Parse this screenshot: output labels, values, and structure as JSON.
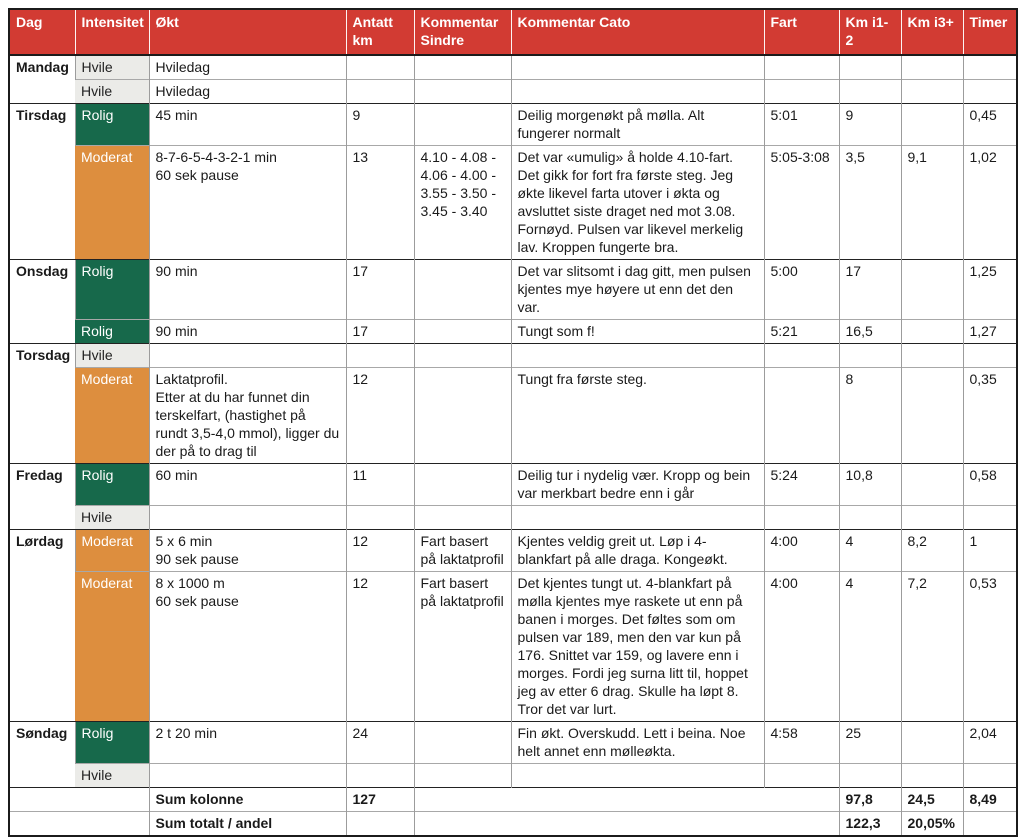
{
  "colors": {
    "header_bg": "#d23b33",
    "header_text": "#ffffff",
    "intensity_rolig": "#17694b",
    "intensity_moderat": "#dd8e3e",
    "intensity_hvile": "#ebebe8"
  },
  "header": {
    "columns": [
      "Dag",
      "Intensitet",
      "Økt",
      "Antatt km",
      "Kommentar Sindre",
      "Kommentar Cato",
      "Fart",
      "Km i1-2",
      "Km i3+",
      "Timer"
    ]
  },
  "rows": [
    {
      "day": "Mandag",
      "day_span": 2,
      "level": "hvile",
      "intensitet": "Hvile",
      "okt": "Hviledag",
      "antatt_km": "",
      "kommentar_sindre": "",
      "kommentar_cato": "",
      "fart": "",
      "km_i12": "",
      "km_i3": "",
      "timer": ""
    },
    {
      "level": "hvile",
      "intensitet": "Hvile",
      "okt": "Hviledag",
      "antatt_km": "",
      "kommentar_sindre": "",
      "kommentar_cato": "",
      "fart": "",
      "km_i12": "",
      "km_i3": "",
      "timer": ""
    },
    {
      "day": "Tirsdag",
      "day_span": 2,
      "level": "rolig",
      "intensitet": "Rolig",
      "okt": "45 min",
      "antatt_km": "9",
      "kommentar_sindre": "",
      "kommentar_cato": "Deilig morgenøkt på mølla. Alt fungerer normalt",
      "fart": "5:01",
      "km_i12": "9",
      "km_i3": "",
      "timer": "0,45"
    },
    {
      "level": "moderat",
      "intensitet": "Moderat",
      "okt": "8-7-6-5-4-3-2-1 min\n60 sek pause",
      "antatt_km": "13",
      "kommentar_sindre": "4.10 - 4.08 - 4.06 - 4.00 - 3.55 - 3.50 - 3.45 - 3.40",
      "kommentar_cato": "Det var «umulig» å holde 4.10-fart. Det gikk for fort fra første steg. Jeg økte likevel farta utover i økta og avsluttet siste draget ned mot 3.08. Fornøyd. Pulsen var likevel merkelig lav. Kroppen fungerte bra.",
      "fart": "5:05-3:08",
      "km_i12": "3,5",
      "km_i3": "9,1",
      "timer": "1,02"
    },
    {
      "day": "Onsdag",
      "day_span": 2,
      "level": "rolig",
      "intensitet": "Rolig",
      "okt": "90 min",
      "antatt_km": "17",
      "kommentar_sindre": "",
      "kommentar_cato": "Det var slitsomt i dag gitt, men pulsen kjentes mye høyere ut enn det den var.",
      "fart": "5:00",
      "km_i12": "17",
      "km_i3": "",
      "timer": "1,25"
    },
    {
      "level": "rolig",
      "intensitet": "Rolig",
      "okt": "90 min",
      "antatt_km": "17",
      "kommentar_sindre": "",
      "kommentar_cato": "Tungt som f!",
      "fart": "5:21",
      "km_i12": "16,5",
      "km_i3": "",
      "timer": "1,27"
    },
    {
      "day": "Torsdag",
      "day_span": 2,
      "level": "hvile",
      "intensitet": "Hvile",
      "okt": "",
      "antatt_km": "",
      "kommentar_sindre": "",
      "kommentar_cato": "",
      "fart": "",
      "km_i12": "",
      "km_i3": "",
      "timer": ""
    },
    {
      "level": "moderat",
      "intensitet": "Moderat",
      "okt": "Laktatprofil.\nEtter at du har funnet din terskelfart, (hastighet på rundt 3,5-4,0 mmol), ligger du der på to drag til",
      "antatt_km": "12",
      "kommentar_sindre": "",
      "kommentar_cato": "Tungt fra første steg.",
      "fart": "",
      "km_i12": "8",
      "km_i3": "",
      "timer": "0,35"
    },
    {
      "day": "Fredag",
      "day_span": 2,
      "level": "rolig",
      "intensitet": "Rolig",
      "okt": "60 min",
      "antatt_km": "11",
      "kommentar_sindre": "",
      "kommentar_cato": "Deilig tur i nydelig vær. Kropp og bein var merkbart bedre enn i går",
      "fart": "5:24",
      "km_i12": "10,8",
      "km_i3": "",
      "timer": "0,58"
    },
    {
      "level": "hvile",
      "intensitet": "Hvile",
      "okt": "",
      "antatt_km": "",
      "kommentar_sindre": "",
      "kommentar_cato": "",
      "fart": "",
      "km_i12": "",
      "km_i3": "",
      "timer": ""
    },
    {
      "day": "Lørdag",
      "day_span": 2,
      "level": "moderat",
      "intensitet": "Moderat",
      "okt": "5 x 6 min\n90 sek pause",
      "antatt_km": "12",
      "kommentar_sindre": "Fart basert på laktatprofil",
      "kommentar_cato": "Kjentes veldig greit ut. Løp i 4-blankfart på alle draga. Kongeøkt.",
      "fart": "4:00",
      "km_i12": "4",
      "km_i3": "8,2",
      "timer": "1"
    },
    {
      "level": "moderat",
      "intensitet": "Moderat",
      "okt": "8 x 1000 m\n60 sek pause",
      "antatt_km": "12",
      "kommentar_sindre": "Fart basert på laktatprofil",
      "kommentar_cato": "Det kjentes tungt ut. 4-blankfart på mølla kjentes mye raskete ut enn på banen i morges. Det føltes som om pulsen var 189, men den var kun på 176. Snittet var 159, og lavere enn i morges. Fordi jeg surna litt til, hoppet jeg av etter 6 drag. Skulle ha løpt 8. Tror det var lurt.",
      "fart": "4:00",
      "km_i12": "4",
      "km_i3": "7,2",
      "timer": "0,53"
    },
    {
      "day": "Søndag",
      "day_span": 2,
      "level": "rolig",
      "intensitet": "Rolig",
      "okt": "2 t 20 min",
      "antatt_km": "24",
      "kommentar_sindre": "",
      "kommentar_cato": "Fin økt. Overskudd. Lett i beina. Noe helt annet enn mølleøkta.",
      "fart": "4:58",
      "km_i12": "25",
      "km_i3": "",
      "timer": "2,04"
    },
    {
      "level": "hvile",
      "intensitet": "Hvile",
      "okt": "",
      "antatt_km": "",
      "kommentar_sindre": "",
      "kommentar_cato": "",
      "fart": "",
      "km_i12": "",
      "km_i3": "",
      "timer": ""
    }
  ],
  "summary": [
    {
      "label": "Sum kolonne",
      "antatt_km": "127",
      "km_i12": "97,8",
      "km_i3": "24,5",
      "timer": "8,49"
    },
    {
      "label": "Sum totalt / andel",
      "antatt_km": "",
      "km_i12": "122,3",
      "km_i3": "20,05%",
      "timer": ""
    }
  ]
}
